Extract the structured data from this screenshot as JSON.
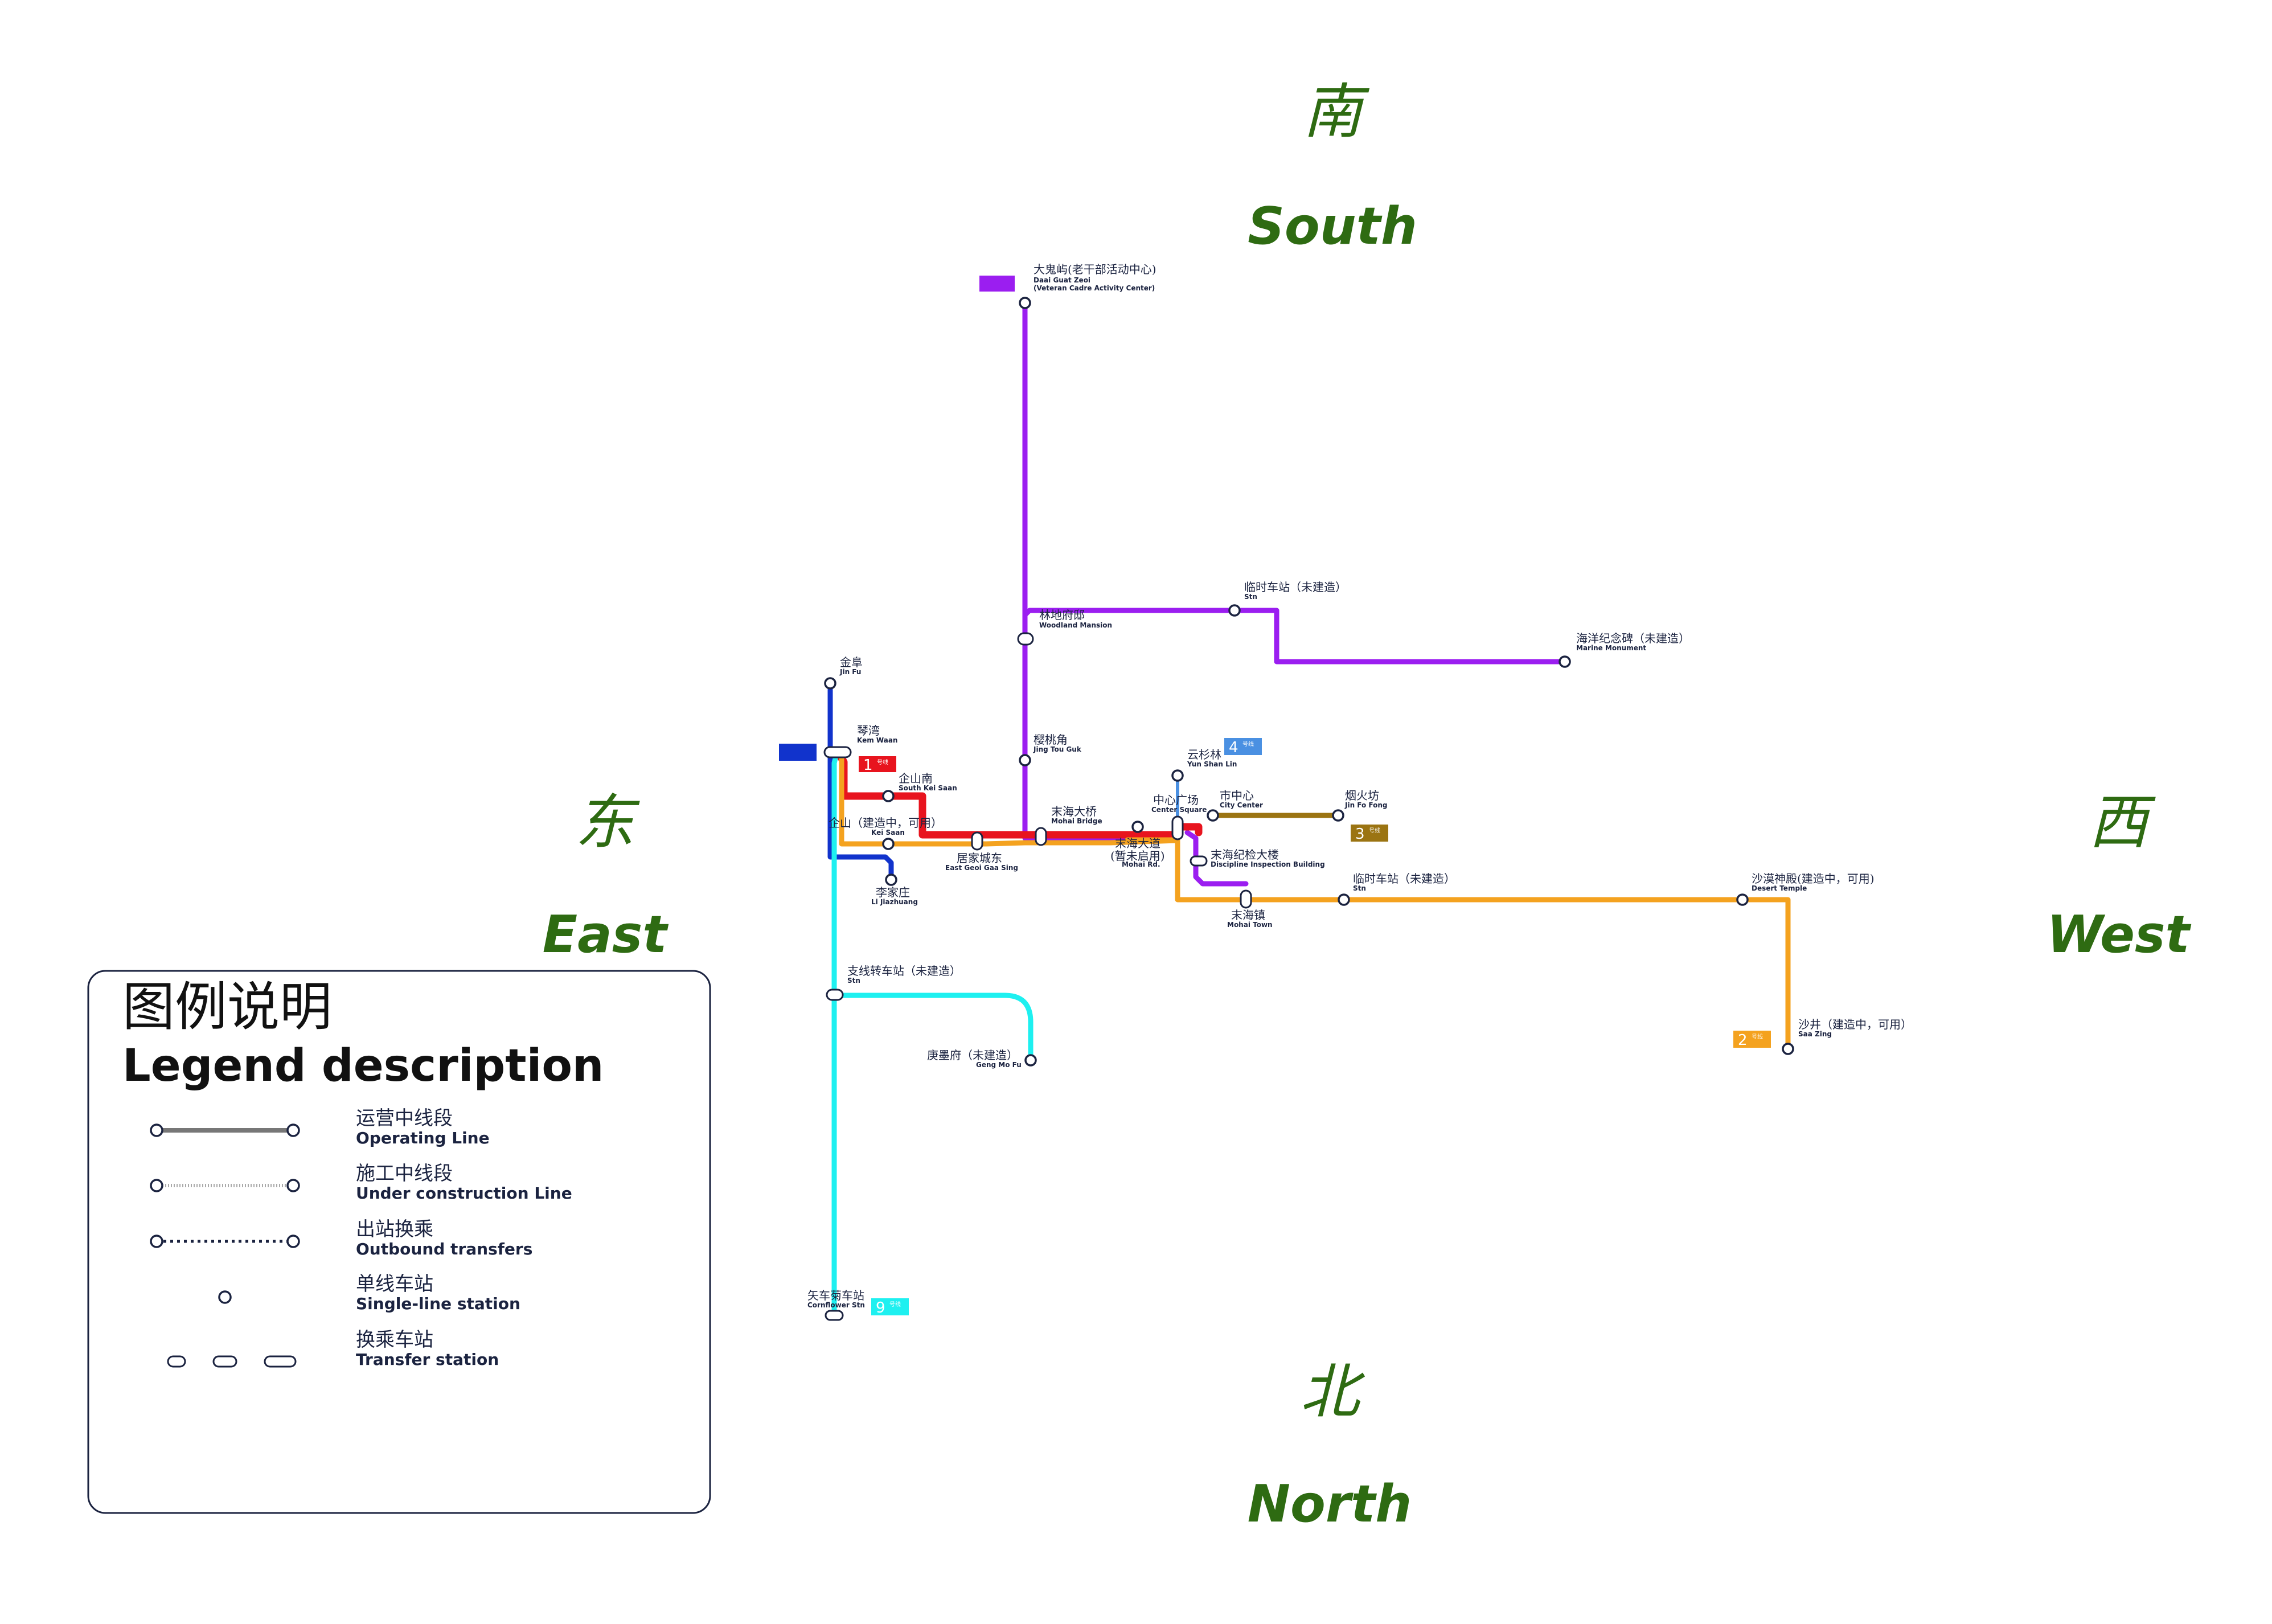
{
  "directions": {
    "top_cn": "南",
    "top_en": "South",
    "left_cn": "东",
    "left_en": "East",
    "right_cn": "西",
    "right_en": "West",
    "bottom_cn": "北",
    "bottom_en": "North"
  },
  "lines": {
    "line1": {
      "num": "1",
      "small": "号线",
      "color": "#e8141e"
    },
    "line2": {
      "num": "2",
      "small": "号线",
      "color": "#f4a21f"
    },
    "line3": {
      "num": "3",
      "small": "号线",
      "color": "#9b7412"
    },
    "line4": {
      "num": "4",
      "small": "号线",
      "color": "#4a90e2"
    },
    "line9": {
      "num": "9",
      "small": "号线",
      "color": "#1ef0f0"
    },
    "purple": {
      "color": "#9b1ef0"
    },
    "blue": {
      "color": "#1133cc"
    }
  },
  "stations": {
    "daiguatzeoi": {
      "cn": "大鬼屿(老干部活动中心)",
      "en1": "Daai Guat Zeoi",
      "en2": "(Veteran Cadre Activity Center)"
    },
    "linshi_n": {
      "cn": "临时车站（未建造）",
      "en": "Stn"
    },
    "woodland": {
      "cn": "林地府邸",
      "en": "Woodland Mansion"
    },
    "marine": {
      "cn": "海洋纪念碑（未建造）",
      "en": "Marine Monument"
    },
    "jinfu": {
      "cn": "金阜",
      "en": "Jin Fu"
    },
    "kemwaan": {
      "cn": "琴湾",
      "en": "Kem Waan"
    },
    "southkeisaan": {
      "cn": "企山南",
      "en": "South Kei Saan"
    },
    "keisaan": {
      "cn": "企山（建造中，可用）",
      "en": "Kei Saan"
    },
    "lijiazhuang": {
      "cn": "李家庄",
      "en": "Li Jiazhuang"
    },
    "eastgeoi": {
      "cn": "居家城东",
      "en": "East Geoi Gaa Sing"
    },
    "jingtougok": {
      "cn": "樱桃角",
      "en": "Jing Tou Guk"
    },
    "mohaibridge": {
      "cn": "末海大桥",
      "en": "Mohai Bridge"
    },
    "mohaird": {
      "cn": "末海大道",
      "cn2": "(暂未启用)",
      "en": "Mohai Rd."
    },
    "yunshanlin": {
      "cn": "云杉林",
      "en": "Yun Shan Lin"
    },
    "centersquare": {
      "cn": "中心广场",
      "en": "Center Square"
    },
    "citycenter": {
      "cn": "市中心",
      "en": "City Center"
    },
    "jinfofong": {
      "cn": "烟火坊",
      "en": "Jin Fo Fong"
    },
    "discipline": {
      "cn": "末海纪检大楼",
      "en": "Discipline Inspection Building"
    },
    "mohaitown": {
      "cn": "末海镇",
      "en": "Mohai Town"
    },
    "linshi_s": {
      "cn": "临时车站（未建造）",
      "en": "Stn"
    },
    "deserttemple": {
      "cn": "沙漠神殿(建造中，可用)",
      "en": "Desert Temple"
    },
    "saazing": {
      "cn": "沙井（建造中，可用）",
      "en": "Saa Zing"
    },
    "branchstn": {
      "cn": "支线转车站（未建造）",
      "en": "Stn"
    },
    "gengmofu": {
      "cn": "庚墨府（未建造）",
      "en": "Geng Mo Fu"
    },
    "cornflower": {
      "cn": "矢车菊车站",
      "en": "Cornflower Stn"
    }
  },
  "legend": {
    "title_cn": "图例说明",
    "title_en": "Legend description",
    "items": [
      {
        "cn": "运营中线段",
        "en": "Operating Line"
      },
      {
        "cn": "施工中线段",
        "en": "Under construction Line"
      },
      {
        "cn": "出站换乘",
        "en": "Outbound transfers"
      },
      {
        "cn": "单线车站",
        "en": "Single-line station"
      },
      {
        "cn": "换乘车站",
        "en": "Transfer station"
      }
    ]
  }
}
